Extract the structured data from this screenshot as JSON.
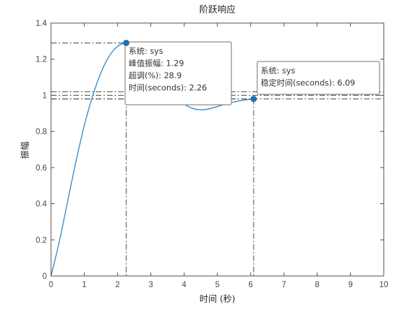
{
  "chart_data": {
    "type": "line",
    "title": "阶跃响应",
    "xlabel": "时间 (秒)",
    "ylabel": "振幅",
    "xlim": [
      0,
      10
    ],
    "ylim": [
      0,
      1.4
    ],
    "xticks": [
      "0",
      "1",
      "2",
      "3",
      "4",
      "5",
      "6",
      "7",
      "8",
      "9",
      "10"
    ],
    "yticks": [
      "0",
      "0.2",
      "0.4",
      "0.6",
      "0.8",
      "1",
      "1.2",
      "1.4"
    ],
    "grid": false,
    "series": [
      {
        "x": [
          0,
          0.25,
          0.5,
          0.75,
          1.0,
          1.25,
          1.5,
          1.75,
          2.0,
          2.26,
          2.5,
          2.75,
          3.0,
          3.25,
          3.5,
          3.75,
          4.0,
          4.25,
          4.5,
          4.75,
          5.0,
          5.25,
          5.5,
          5.75,
          6.09
        ],
        "y": [
          0,
          0.191,
          0.414,
          0.634,
          0.833,
          0.996,
          1.125,
          1.217,
          1.271,
          1.289,
          1.275,
          1.238,
          1.184,
          1.121,
          1.056,
          0.998,
          0.953,
          0.928,
          0.92,
          0.925,
          0.938,
          0.952,
          0.963,
          0.972,
          0.98
        ],
        "color": "#2d86c8"
      }
    ],
    "reference_lines": {
      "final_value": 1.0,
      "settling_upper": 1.02,
      "settling_lower": 0.98
    },
    "annotations": [
      {
        "x": 2.26,
        "y": 1.29,
        "lines": [
          {
            "label": "系统: ",
            "value": "sys"
          },
          {
            "label": "峰值振幅: ",
            "value": "1.29"
          },
          {
            "label": "超调(%): ",
            "value": "28.9"
          },
          {
            "label": "时间(seconds): ",
            "value": "2.26"
          }
        ]
      },
      {
        "x": 6.09,
        "y": 0.98,
        "lines": [
          {
            "label": "系统: ",
            "value": "sys"
          },
          {
            "label": "稳定时间(seconds): ",
            "value": "6.09"
          }
        ]
      }
    ],
    "colors": {
      "line": "#2d86c8",
      "marker": "#1f6fb8",
      "refline": "#444444",
      "axes": "#4d4d4d"
    }
  }
}
